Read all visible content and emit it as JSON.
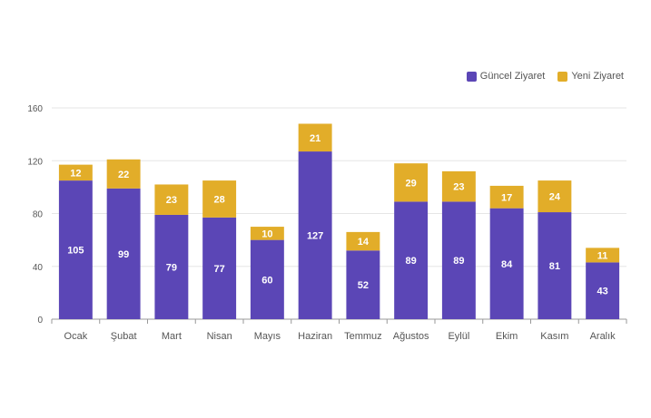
{
  "chart_data": {
    "type": "bar",
    "stacked": true,
    "categories": [
      "Ocak",
      "Şubat",
      "Mart",
      "Nisan",
      "Mayıs",
      "Haziran",
      "Temmuz",
      "Ağustos",
      "Eylül",
      "Ekim",
      "Kasım",
      "Aralık"
    ],
    "series": [
      {
        "name": "Güncel Ziyaret",
        "color": "#5b46b6",
        "values": [
          105,
          99,
          79,
          77,
          60,
          127,
          52,
          89,
          89,
          84,
          81,
          43
        ]
      },
      {
        "name": "Yeni Ziyaret",
        "color": "#e2ad29",
        "values": [
          12,
          22,
          23,
          28,
          10,
          21,
          14,
          29,
          23,
          17,
          24,
          11
        ]
      }
    ],
    "yticks": [
      0,
      40,
      80,
      120,
      160
    ],
    "ylim": [
      0,
      160
    ],
    "grid": true,
    "legend_position": "top-right"
  }
}
